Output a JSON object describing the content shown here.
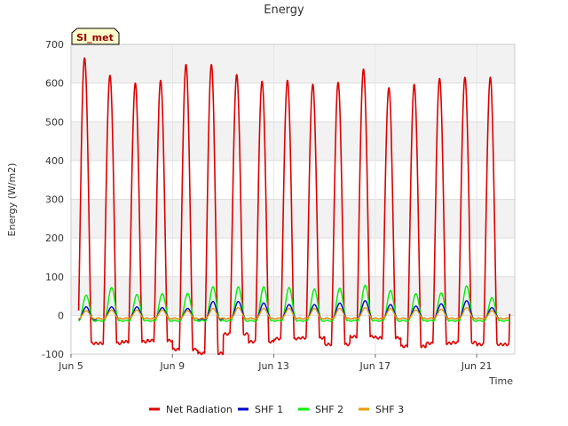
{
  "chart_data": {
    "type": "line",
    "title": "Energy",
    "xlabel": "Time",
    "ylabel": "Energy (W/m2)",
    "ylim": [
      -100,
      700
    ],
    "yticks": [
      -100,
      0,
      100,
      200,
      300,
      400,
      500,
      600,
      700
    ],
    "xlim_days": [
      5,
      22.5
    ],
    "xticks": [
      {
        "label": "Jun 5",
        "day": 5
      },
      {
        "label": "Jun 9",
        "day": 9
      },
      {
        "label": "Jun 13",
        "day": 13
      },
      {
        "label": "Jun 17",
        "day": 17
      },
      {
        "label": "Jun 21",
        "day": 21
      }
    ],
    "grid": true,
    "site_label": "SI_met",
    "legend_position": "bottom",
    "day_range": [
      5.3,
      22.3
    ],
    "series": [
      {
        "name": "Net Radiation",
        "color": "#dd0000",
        "daily_peak": [
          665,
          620,
          600,
          607,
          648,
          648,
          622,
          605,
          607,
          597,
          602,
          636,
          588,
          597,
          612,
          615,
          615
        ],
        "night_value": [
          -72,
          -72,
          -68,
          -65,
          -88,
          -98,
          -48,
          -68,
          -60,
          -58,
          -75,
          -55,
          -58,
          -80,
          -72,
          -70,
          -75
        ]
      },
      {
        "name": "SHF 1",
        "color": "#0000cc",
        "daily_peak": [
          22,
          22,
          22,
          20,
          18,
          36,
          36,
          32,
          28,
          28,
          32,
          38,
          28,
          24,
          30,
          38,
          20
        ],
        "night_value": [
          -10,
          -8,
          -8,
          -8,
          -8,
          -10,
          -8,
          -8,
          -8,
          -8,
          -8,
          -8,
          -8,
          -8,
          -8,
          -8,
          -8
        ]
      },
      {
        "name": "SHF 2",
        "color": "#00ee00",
        "daily_peak": [
          52,
          72,
          54,
          56,
          57,
          74,
          74,
          74,
          72,
          68,
          70,
          78,
          64,
          56,
          58,
          76,
          46
        ],
        "night_value": [
          -14,
          -14,
          -14,
          -14,
          -14,
          -14,
          -14,
          -14,
          -14,
          -14,
          -14,
          -14,
          -14,
          -14,
          -14,
          -14,
          -14
        ]
      },
      {
        "name": "SHF 3",
        "color": "#e69c00",
        "daily_peak": [
          12,
          14,
          14,
          14,
          12,
          18,
          20,
          18,
          18,
          18,
          18,
          20,
          18,
          14,
          16,
          20,
          12
        ],
        "night_value": [
          -8,
          -8,
          -8,
          -8,
          -8,
          -8,
          -8,
          -8,
          -8,
          -8,
          -8,
          -8,
          -8,
          -8,
          -8,
          -8,
          -8
        ]
      }
    ]
  }
}
